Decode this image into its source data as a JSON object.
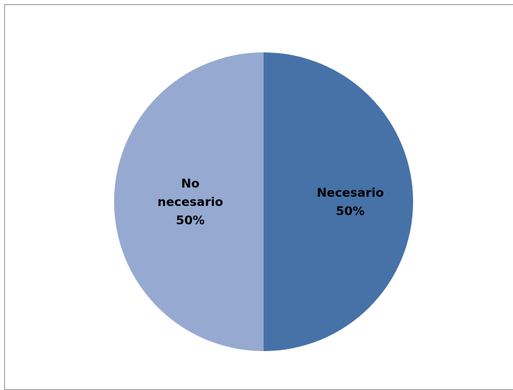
{
  "chart_data": {
    "type": "pie",
    "title": "",
    "slices": [
      {
        "label": "Necesario",
        "value": 50,
        "percent_label": "50%",
        "color": "#4672A8"
      },
      {
        "label": "No necesario",
        "value": 50,
        "percent_label": "50%",
        "color": "#96A9D1"
      }
    ],
    "legend": "none",
    "data_labels": "inside"
  }
}
